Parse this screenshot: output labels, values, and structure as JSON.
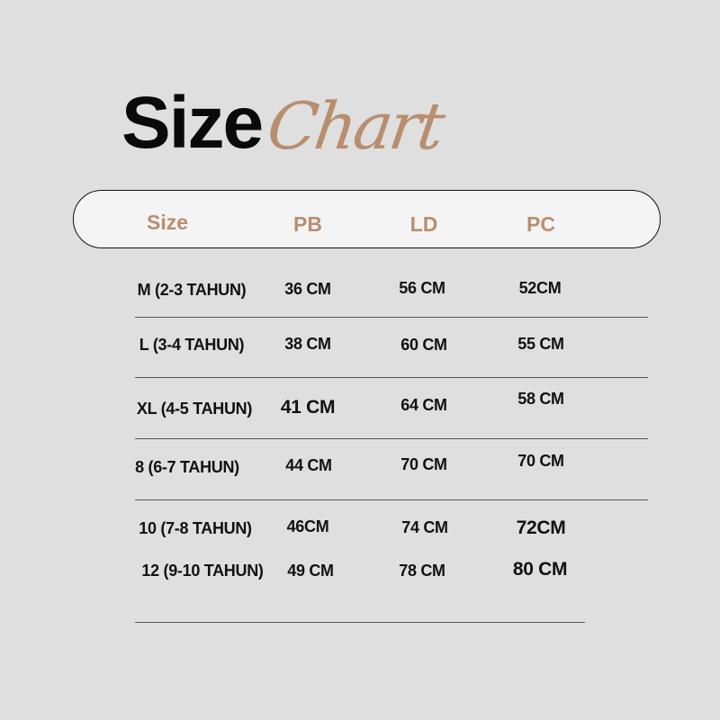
{
  "title": {
    "bold": "Size",
    "script": "Chart"
  },
  "colors": {
    "accent": "#b88e6f",
    "background": "#dfdfdf",
    "header_fill": "#f4f4f4"
  },
  "header": [
    "Size",
    "PB",
    "LD",
    "PC"
  ],
  "rows": [
    {
      "size": "M (2-3 TAHUN)",
      "pb": "36 CM",
      "ld": "56 CM",
      "pc": "52CM"
    },
    {
      "size": "L (3-4 TAHUN)",
      "pb": "38 CM",
      "ld": "60 CM",
      "pc": "55 CM"
    },
    {
      "size": "XL (4-5 TAHUN)",
      "pb": "41 CM",
      "ld": "64 CM",
      "pc": "58 CM"
    },
    {
      "size": "8 (6-7 TAHUN)",
      "pb": "44 CM",
      "ld": "70 CM",
      "pc": "70 CM"
    },
    {
      "size": "10 (7-8 TAHUN)",
      "pb": "46CM",
      "ld": "74 CM",
      "pc": "72CM"
    },
    {
      "size": "12 (9-10 TAHUN)",
      "pb": "49 CM",
      "ld": "78 CM",
      "pc": "80 CM"
    }
  ]
}
